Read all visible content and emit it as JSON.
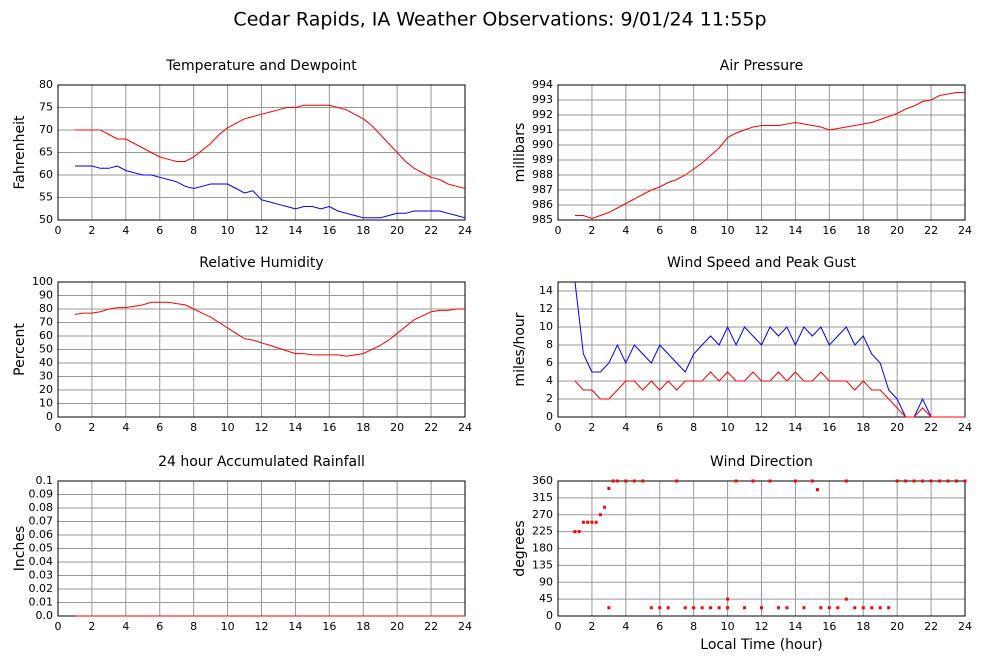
{
  "title": "Cedar Rapids, IA Weather Observations: 9/01/24 11:55p",
  "chart_data": [
    {
      "type": "line",
      "title": "Temperature and Dewpoint",
      "ylabel": "Fahrenheit",
      "x": [
        1,
        1.5,
        2,
        2.5,
        3,
        3.5,
        4,
        4.5,
        5,
        5.5,
        6,
        6.5,
        7,
        7.5,
        8,
        8.5,
        9,
        9.5,
        10,
        10.5,
        11,
        11.5,
        12,
        12.5,
        13,
        13.5,
        14,
        14.5,
        15,
        15.5,
        16,
        16.5,
        17,
        17.5,
        18,
        18.5,
        19,
        19.5,
        20,
        20.5,
        21,
        21.5,
        22,
        22.5,
        23,
        23.5,
        24
      ],
      "xlim": [
        0,
        24
      ],
      "xticks": [
        0,
        2,
        4,
        6,
        8,
        10,
        12,
        14,
        16,
        18,
        20,
        22,
        24
      ],
      "ylim": [
        50,
        80
      ],
      "yticks": [
        50,
        55,
        60,
        65,
        70,
        75,
        80
      ],
      "grid": true,
      "series": [
        {
          "color": "#ff0000",
          "values": [
            70,
            70,
            70,
            70,
            69,
            68,
            68,
            67,
            66,
            65,
            64,
            63.5,
            63,
            63,
            64,
            65.5,
            67,
            69,
            70.5,
            71.5,
            72.5,
            73,
            73.5,
            74,
            74.5,
            75,
            75,
            75.5,
            75.5,
            75.5,
            75.5,
            75,
            74.5,
            73.5,
            72.5,
            71,
            69,
            67,
            65,
            63,
            61.5,
            60.5,
            59.5,
            59,
            58,
            57.5,
            57
          ]
        },
        {
          "color": "#0000ff",
          "values": [
            62,
            62,
            62,
            61.5,
            61.5,
            62,
            61,
            60.5,
            60,
            60,
            59.5,
            59,
            58.5,
            57.5,
            57,
            57.5,
            58,
            58,
            58,
            57,
            56,
            56.5,
            54.5,
            54,
            53.5,
            53,
            52.5,
            53,
            53,
            52.5,
            53,
            52,
            51.5,
            51,
            50.5,
            50.5,
            50.5,
            51,
            51.5,
            51.5,
            52,
            52,
            52,
            52,
            51.5,
            51,
            50.5
          ]
        }
      ]
    },
    {
      "type": "line",
      "title": "Air Pressure",
      "ylabel": "millibars",
      "x": [
        1,
        1.5,
        2,
        2.5,
        3,
        3.5,
        4,
        4.5,
        5,
        5.5,
        6,
        6.5,
        7,
        7.5,
        8,
        8.5,
        9,
        9.5,
        10,
        10.5,
        11,
        11.5,
        12,
        12.5,
        13,
        13.5,
        14,
        14.5,
        15,
        15.5,
        16,
        16.5,
        17,
        17.5,
        18,
        18.5,
        19,
        19.5,
        20,
        20.5,
        21,
        21.5,
        22,
        22.5,
        23,
        23.5,
        24
      ],
      "xlim": [
        0,
        24
      ],
      "xticks": [
        0,
        2,
        4,
        6,
        8,
        10,
        12,
        14,
        16,
        18,
        20,
        22,
        24
      ],
      "ylim": [
        985,
        994
      ],
      "yticks": [
        985,
        986,
        987,
        988,
        989,
        990,
        991,
        992,
        993,
        994
      ],
      "grid": true,
      "series": [
        {
          "color": "#ff0000",
          "values": [
            985.3,
            985.3,
            985.1,
            985.3,
            985.5,
            985.8,
            986.1,
            986.4,
            986.7,
            987,
            987.2,
            987.5,
            987.7,
            988,
            988.4,
            988.8,
            989.3,
            989.8,
            990.5,
            990.8,
            991,
            991.2,
            991.3,
            991.3,
            991.3,
            991.4,
            991.5,
            991.4,
            991.3,
            991.2,
            991,
            991.1,
            991.2,
            991.3,
            991.4,
            991.5,
            991.7,
            991.9,
            992.1,
            992.4,
            992.6,
            992.9,
            993,
            993.3,
            993.4,
            993.5,
            993.5
          ]
        }
      ]
    },
    {
      "type": "line",
      "title": "Relative Humidity",
      "ylabel": "Percent",
      "x": [
        1,
        1.5,
        2,
        2.5,
        3,
        3.5,
        4,
        4.5,
        5,
        5.5,
        6,
        6.5,
        7,
        7.5,
        8,
        8.5,
        9,
        9.5,
        10,
        10.5,
        11,
        11.5,
        12,
        12.5,
        13,
        13.5,
        14,
        14.5,
        15,
        15.5,
        16,
        16.5,
        17,
        17.5,
        18,
        18.5,
        19,
        19.5,
        20,
        20.5,
        21,
        21.5,
        22,
        22.5,
        23,
        23.5,
        24
      ],
      "xlim": [
        0,
        24
      ],
      "xticks": [
        0,
        2,
        4,
        6,
        8,
        10,
        12,
        14,
        16,
        18,
        20,
        22,
        24
      ],
      "ylim": [
        0,
        100
      ],
      "yticks": [
        0,
        10,
        20,
        30,
        40,
        50,
        60,
        70,
        80,
        90,
        100
      ],
      "grid": true,
      "series": [
        {
          "color": "#ff0000",
          "values": [
            76,
            77,
            77,
            78,
            80,
            81,
            81,
            82,
            83,
            85,
            85,
            85,
            84,
            83,
            80,
            77,
            74,
            70,
            66,
            62,
            58,
            57,
            55,
            53,
            51,
            49,
            47,
            47,
            46,
            46,
            46,
            46,
            45,
            46,
            47,
            50,
            53,
            57,
            62,
            67,
            72,
            75,
            78,
            79,
            79,
            80,
            80
          ]
        }
      ]
    },
    {
      "type": "line",
      "title": "Wind Speed and Peak Gust",
      "ylabel": "miles/hour",
      "x": [
        1,
        1.5,
        2,
        2.5,
        3,
        3.5,
        4,
        4.5,
        5,
        5.5,
        6,
        6.5,
        7,
        7.5,
        8,
        8.5,
        9,
        9.5,
        10,
        10.5,
        11,
        11.5,
        12,
        12.5,
        13,
        13.5,
        14,
        14.5,
        15,
        15.5,
        16,
        16.5,
        17,
        17.5,
        18,
        18.5,
        19,
        19.5,
        20,
        20.5,
        21,
        21.5,
        22,
        22.5,
        23,
        23.5,
        24
      ],
      "xlim": [
        0,
        24
      ],
      "xticks": [
        0,
        2,
        4,
        6,
        8,
        10,
        12,
        14,
        16,
        18,
        20,
        22,
        24
      ],
      "ylim": [
        0,
        15
      ],
      "yticks": [
        0,
        2,
        4,
        6,
        8,
        10,
        12,
        14
      ],
      "grid": true,
      "series": [
        {
          "color": "#0000ff",
          "values": [
            15,
            7,
            5,
            5,
            6,
            8,
            6,
            8,
            7,
            6,
            8,
            7,
            6,
            5,
            7,
            8,
            9,
            8,
            10,
            8,
            10,
            9,
            8,
            10,
            9,
            10,
            8,
            10,
            9,
            10,
            8,
            9,
            10,
            8,
            9,
            7,
            6,
            3,
            2,
            0,
            0,
            2,
            0,
            0,
            0,
            0,
            0
          ]
        },
        {
          "color": "#ff0000",
          "values": [
            4,
            3,
            3,
            2,
            2,
            3,
            4,
            4,
            3,
            4,
            3,
            4,
            3,
            4,
            4,
            4,
            5,
            4,
            5,
            4,
            4,
            5,
            4,
            4,
            5,
            4,
            5,
            4,
            4,
            5,
            4,
            4,
            4,
            3,
            4,
            3,
            3,
            2,
            1,
            0,
            0,
            1,
            0,
            0,
            0,
            0,
            0
          ]
        }
      ]
    },
    {
      "type": "line",
      "title": "24 hour Accumulated Rainfall",
      "ylabel": "Inches",
      "x": [
        1,
        24
      ],
      "xlim": [
        0,
        24
      ],
      "xticks": [
        0,
        2,
        4,
        6,
        8,
        10,
        12,
        14,
        16,
        18,
        20,
        22,
        24
      ],
      "ylim": [
        0,
        0.1
      ],
      "yticks": [
        {
          "value": 0,
          "label": "0.0"
        },
        0.01,
        0.02,
        0.03,
        0.04,
        0.05,
        0.06,
        0.07,
        0.08,
        0.09,
        0.1
      ],
      "grid": true,
      "series": [
        {
          "color": "#ff0000",
          "values": [
            0,
            0
          ]
        }
      ]
    },
    {
      "type": "scatter",
      "title": "Wind Direction",
      "ylabel": "degrees",
      "xlabel": "Local Time (hour)",
      "x": [
        1,
        1.25,
        1.5,
        1.75,
        2,
        2.25,
        2.5,
        2.75,
        3,
        3,
        3.25,
        3.5,
        4,
        4.5,
        5,
        5.5,
        6,
        6.5,
        7,
        7.5,
        8,
        8.5,
        9,
        9.5,
        10,
        10,
        10.5,
        11,
        11.5,
        12,
        12.5,
        13,
        13.5,
        14,
        14.5,
        15,
        15.3,
        15.5,
        16,
        16.5,
        17,
        17,
        17.5,
        18,
        18.5,
        19,
        19.5,
        20,
        20.5,
        21,
        21.5,
        22,
        22.5,
        23,
        23.5,
        24
      ],
      "xlim": [
        0,
        24
      ],
      "xticks": [
        0,
        2,
        4,
        6,
        8,
        10,
        12,
        14,
        16,
        18,
        20,
        22,
        24
      ],
      "ylim": [
        0,
        360
      ],
      "yticks": [
        0,
        45,
        90,
        135,
        180,
        225,
        270,
        315,
        360
      ],
      "grid": true,
      "series": [
        {
          "color": "#ff0000",
          "values": [
            225,
            225,
            250,
            250,
            250,
            250,
            270,
            290,
            340,
            22,
            360,
            360,
            360,
            360,
            360,
            22,
            22,
            22,
            360,
            22,
            22,
            22,
            22,
            22,
            45,
            22,
            360,
            22,
            360,
            22,
            360,
            22,
            22,
            360,
            22,
            360,
            337,
            22,
            22,
            22,
            360,
            45,
            22,
            22,
            22,
            22,
            22,
            360,
            360,
            360,
            360,
            360,
            360,
            360,
            360,
            360
          ]
        }
      ]
    }
  ]
}
